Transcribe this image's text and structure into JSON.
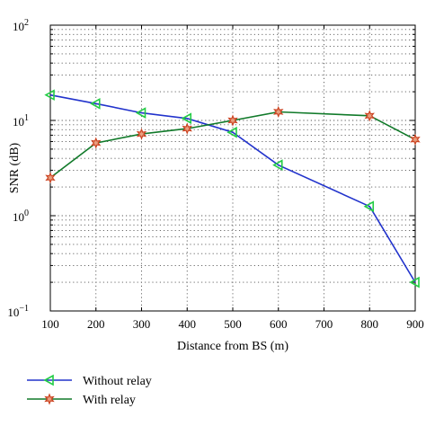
{
  "chart_data": {
    "type": "line",
    "xlabel": "Distance from BS (m)",
    "ylabel": "SNR (dB)",
    "xlim": [
      100,
      900
    ],
    "ylim": [
      0.1,
      100
    ],
    "y_scale": "log",
    "grid": true,
    "legend_position": "bottom-left, below plot",
    "x_ticks": [
      "100",
      "200",
      "300",
      "400",
      "500",
      "600",
      "700",
      "800",
      "900"
    ],
    "y_ticks": [
      {
        "base": "10",
        "exp": "2",
        "value": 100
      },
      {
        "base": "10",
        "exp": "1",
        "value": 10
      },
      {
        "base": "10",
        "exp": "0",
        "value": 1
      },
      {
        "base": "10",
        "exp": "−1",
        "value": 0.1
      }
    ],
    "x": [
      100,
      200,
      300,
      400,
      500,
      600,
      800,
      900
    ],
    "series": [
      {
        "name": "Without relay",
        "color": "#2233cc",
        "marker_color": "#22cc44",
        "marker": "left-triangle",
        "values": [
          18.5,
          15,
          12,
          10.5,
          7.5,
          3.4,
          1.25,
          0.2
        ]
      },
      {
        "name": "With relay",
        "color": "#117a2a",
        "marker_color": "#cc4422",
        "marker": "star",
        "values": [
          2.5,
          5.8,
          7.2,
          8.2,
          10,
          12.3,
          11.2,
          6.3
        ]
      }
    ]
  }
}
